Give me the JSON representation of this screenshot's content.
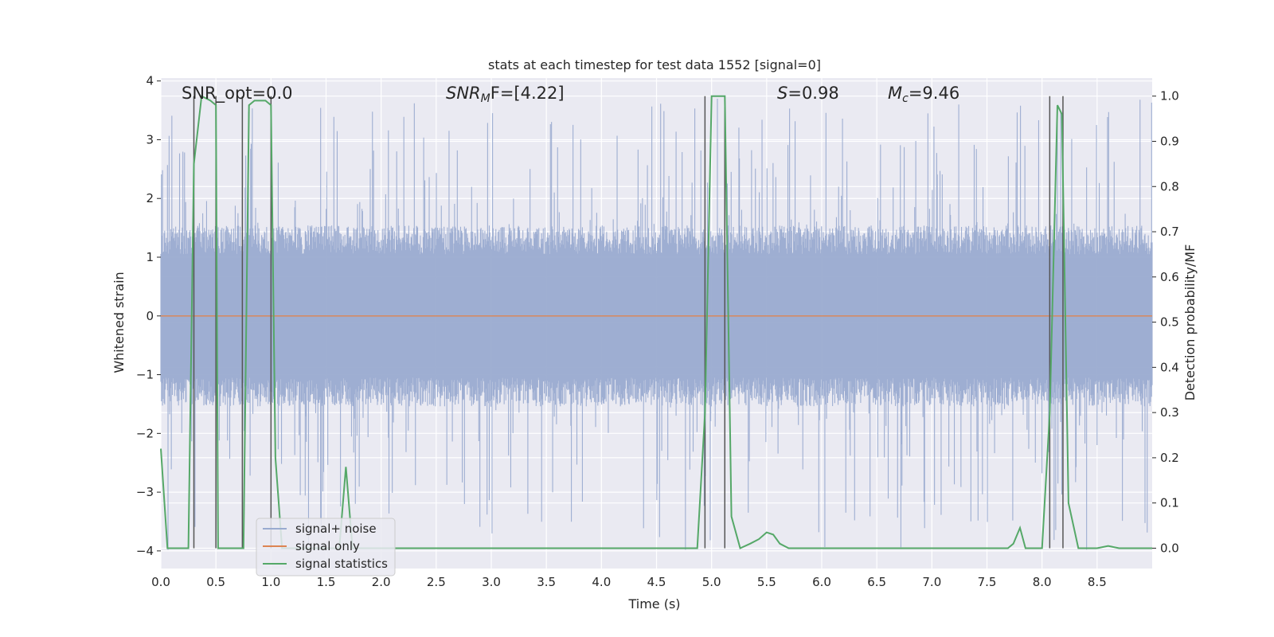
{
  "chart_data": {
    "type": "line",
    "title": "stats at each timestep for test data 1552 [signal=0]",
    "xlabel": "Time (s)",
    "ylabel_left": "Whitened strain",
    "ylabel_right": "Detection probability/MF",
    "xlim": [
      0.0,
      9.0
    ],
    "ylim_left": [
      -4.3,
      4.05
    ],
    "ylim_right": [
      -0.045,
      1.04
    ],
    "x_ticks": [
      "0.0",
      "0.5",
      "1.0",
      "1.5",
      "2.0",
      "2.5",
      "3.0",
      "3.5",
      "4.0",
      "4.5",
      "5.0",
      "5.5",
      "6.0",
      "6.5",
      "7.0",
      "7.5",
      "8.0",
      "8.5"
    ],
    "x_tick_values": [
      0.0,
      0.5,
      1.0,
      1.5,
      2.0,
      2.5,
      3.0,
      3.5,
      4.0,
      4.5,
      5.0,
      5.5,
      6.0,
      6.5,
      7.0,
      7.5,
      8.0,
      8.5
    ],
    "y_left_ticks": [
      "−4",
      "−3",
      "−2",
      "−1",
      "0",
      "1",
      "2",
      "3",
      "4"
    ],
    "y_left_tick_values": [
      -4,
      -3,
      -2,
      -1,
      0,
      1,
      2,
      3,
      4
    ],
    "y_right_ticks": [
      "0.0",
      "0.1",
      "0.2",
      "0.3",
      "0.4",
      "0.5",
      "0.6",
      "0.7",
      "0.8",
      "0.9",
      "1.0"
    ],
    "y_right_tick_values": [
      0.0,
      0.1,
      0.2,
      0.3,
      0.4,
      0.5,
      0.6,
      0.7,
      0.8,
      0.9,
      1.0
    ],
    "grid": true,
    "legend_position": "lower-left",
    "annotations": {
      "snr_opt": "SNR_opt=0.0",
      "snr_mf_prefix": "SNR",
      "snr_mf_sub": "M",
      "snr_mf_suffix": "F=[4.22]",
      "s_label": "S",
      "s_value": "=0.98",
      "mc_label": "M",
      "mc_sub": "c",
      "mc_value": "=9.46"
    },
    "series": [
      {
        "name": "signal+ noise",
        "color": "#9aabd0",
        "noise_band": {
          "min": -1.4,
          "max": 1.4,
          "spike_min": -4.0,
          "spike_max": 3.7
        }
      },
      {
        "name": "signal only",
        "color": "#dd8452",
        "constant": 0.0
      },
      {
        "name": "signal statistics",
        "color": "#55a868",
        "x": [
          0.0,
          0.06,
          0.25,
          0.3,
          0.37,
          0.45,
          0.5,
          0.52,
          0.57,
          0.65,
          0.75,
          0.8,
          0.85,
          0.95,
          1.0,
          1.04,
          1.1,
          1.2,
          1.5,
          1.62,
          1.68,
          1.74,
          1.85,
          2.5,
          3.5,
          4.5,
          4.87,
          4.94,
          5.0,
          5.12,
          5.18,
          5.26,
          5.35,
          5.43,
          5.5,
          5.56,
          5.62,
          5.7,
          6.0,
          7.0,
          7.69,
          7.74,
          7.8,
          7.85,
          7.9,
          8.0,
          8.07,
          8.14,
          8.18,
          8.24,
          8.33,
          8.5,
          8.6,
          8.7,
          9.0
        ],
        "y": [
          0.22,
          0.0,
          0.0,
          0.85,
          1.0,
          0.99,
          0.98,
          0.0,
          0.0,
          0.0,
          0.0,
          0.98,
          0.99,
          0.99,
          0.98,
          0.2,
          0.0,
          0.0,
          0.0,
          0.0,
          0.18,
          0.0,
          0.0,
          0.0,
          0.0,
          0.0,
          0.0,
          0.3,
          1.0,
          1.0,
          0.07,
          0.0,
          0.01,
          0.02,
          0.035,
          0.03,
          0.01,
          0.0,
          0.0,
          0.0,
          0.0,
          0.01,
          0.045,
          0.0,
          0.0,
          0.0,
          0.3,
          0.98,
          0.96,
          0.1,
          0.0,
          0.0,
          0.005,
          0.0,
          0.0
        ]
      }
    ],
    "vertical_markers_x": [
      0.3,
      0.5,
      0.74,
      1.0,
      4.94,
      5.12,
      8.07,
      8.19
    ]
  }
}
